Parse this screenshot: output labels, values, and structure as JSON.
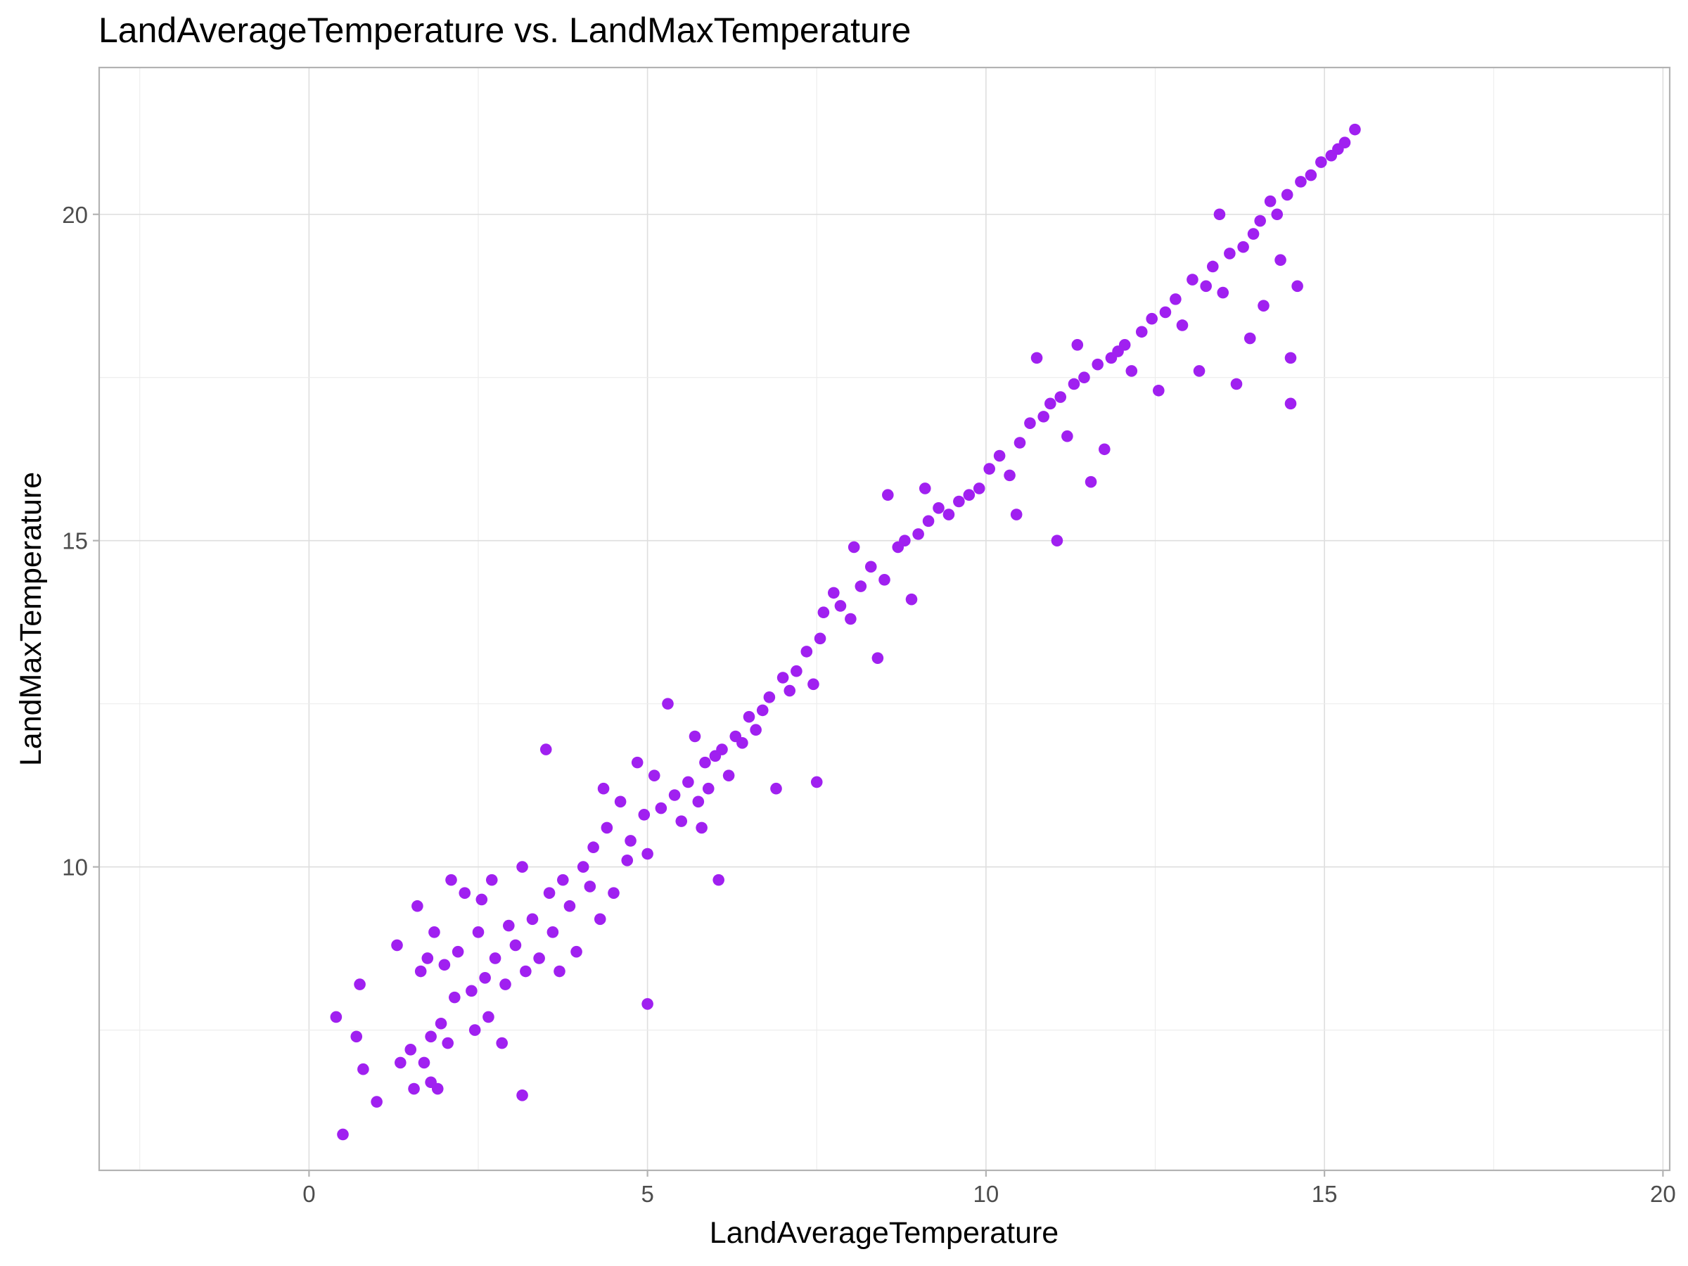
{
  "chart_data": {
    "type": "scatter",
    "title": "LandAverageTemperature vs. LandMaxTemperature",
    "xlabel": "LandAverageTemperature",
    "ylabel": "LandMaxTemperature",
    "xlim": [
      -3.1,
      20.1
    ],
    "ylim": [
      5.35,
      22.25
    ],
    "x_ticks": [
      0,
      5,
      10,
      15,
      20
    ],
    "y_ticks": [
      10,
      15,
      20
    ],
    "grid": true,
    "point_color": "#a020f0",
    "series": [
      {
        "points": [
          [
            0.4,
            7.7
          ],
          [
            0.5,
            5.9
          ],
          [
            0.7,
            7.4
          ],
          [
            0.75,
            8.2
          ],
          [
            0.8,
            6.9
          ],
          [
            1.0,
            6.4
          ],
          [
            1.3,
            8.8
          ],
          [
            1.35,
            7.0
          ],
          [
            1.5,
            7.2
          ],
          [
            1.55,
            6.6
          ],
          [
            1.6,
            9.4
          ],
          [
            1.65,
            8.4
          ],
          [
            1.7,
            7.0
          ],
          [
            1.75,
            8.6
          ],
          [
            1.8,
            6.7
          ],
          [
            1.8,
            7.4
          ],
          [
            1.85,
            9.0
          ],
          [
            1.9,
            6.6
          ],
          [
            1.95,
            7.6
          ],
          [
            2.0,
            8.5
          ],
          [
            2.05,
            7.3
          ],
          [
            2.1,
            9.8
          ],
          [
            2.15,
            8.0
          ],
          [
            2.2,
            8.7
          ],
          [
            2.3,
            9.6
          ],
          [
            2.4,
            8.1
          ],
          [
            2.45,
            7.5
          ],
          [
            2.5,
            9.0
          ],
          [
            2.55,
            9.5
          ],
          [
            2.6,
            8.3
          ],
          [
            2.65,
            7.7
          ],
          [
            2.7,
            9.8
          ],
          [
            2.75,
            8.6
          ],
          [
            2.85,
            7.3
          ],
          [
            2.9,
            8.2
          ],
          [
            2.95,
            9.1
          ],
          [
            3.05,
            8.8
          ],
          [
            3.15,
            10.0
          ],
          [
            3.15,
            6.5
          ],
          [
            3.2,
            8.4
          ],
          [
            3.3,
            9.2
          ],
          [
            3.4,
            8.6
          ],
          [
            3.5,
            11.8
          ],
          [
            3.55,
            9.6
          ],
          [
            3.6,
            9.0
          ],
          [
            3.7,
            8.4
          ],
          [
            3.75,
            9.8
          ],
          [
            3.85,
            9.4
          ],
          [
            3.95,
            8.7
          ],
          [
            4.05,
            10.0
          ],
          [
            4.15,
            9.7
          ],
          [
            4.2,
            10.3
          ],
          [
            4.3,
            9.2
          ],
          [
            4.35,
            11.2
          ],
          [
            4.4,
            10.6
          ],
          [
            4.5,
            9.6
          ],
          [
            4.6,
            11.0
          ],
          [
            4.7,
            10.1
          ],
          [
            4.75,
            10.4
          ],
          [
            4.85,
            11.6
          ],
          [
            4.95,
            10.8
          ],
          [
            5.0,
            10.2
          ],
          [
            5.0,
            7.9
          ],
          [
            5.1,
            11.4
          ],
          [
            5.2,
            10.9
          ],
          [
            5.3,
            12.5
          ],
          [
            5.4,
            11.1
          ],
          [
            5.5,
            10.7
          ],
          [
            5.6,
            11.3
          ],
          [
            5.7,
            12.0
          ],
          [
            5.75,
            11.0
          ],
          [
            5.8,
            10.6
          ],
          [
            5.85,
            11.6
          ],
          [
            5.9,
            11.2
          ],
          [
            6.0,
            11.7
          ],
          [
            6.05,
            9.8
          ],
          [
            6.1,
            11.8
          ],
          [
            6.2,
            11.4
          ],
          [
            6.3,
            12.0
          ],
          [
            6.4,
            11.9
          ],
          [
            6.5,
            12.3
          ],
          [
            6.6,
            12.1
          ],
          [
            6.7,
            12.4
          ],
          [
            6.8,
            12.6
          ],
          [
            6.9,
            11.2
          ],
          [
            7.0,
            12.9
          ],
          [
            7.1,
            12.7
          ],
          [
            7.2,
            13.0
          ],
          [
            7.35,
            13.3
          ],
          [
            7.45,
            12.8
          ],
          [
            7.5,
            11.3
          ],
          [
            7.55,
            13.5
          ],
          [
            7.6,
            13.9
          ],
          [
            7.75,
            14.2
          ],
          [
            7.85,
            14.0
          ],
          [
            8.0,
            13.8
          ],
          [
            8.05,
            14.9
          ],
          [
            8.15,
            14.3
          ],
          [
            8.3,
            14.6
          ],
          [
            8.4,
            13.2
          ],
          [
            8.5,
            14.4
          ],
          [
            8.55,
            15.7
          ],
          [
            8.7,
            14.9
          ],
          [
            8.8,
            15.0
          ],
          [
            8.9,
            14.1
          ],
          [
            9.0,
            15.1
          ],
          [
            9.1,
            15.8
          ],
          [
            9.15,
            15.3
          ],
          [
            9.3,
            15.5
          ],
          [
            9.45,
            15.4
          ],
          [
            9.6,
            15.6
          ],
          [
            9.75,
            15.7
          ],
          [
            9.9,
            15.8
          ],
          [
            10.05,
            16.1
          ],
          [
            10.2,
            16.3
          ],
          [
            10.35,
            16.0
          ],
          [
            10.45,
            15.4
          ],
          [
            10.5,
            16.5
          ],
          [
            10.65,
            16.8
          ],
          [
            10.75,
            17.8
          ],
          [
            10.85,
            16.9
          ],
          [
            10.95,
            17.1
          ],
          [
            11.05,
            15.0
          ],
          [
            11.1,
            17.2
          ],
          [
            11.2,
            16.6
          ],
          [
            11.3,
            17.4
          ],
          [
            11.35,
            18.0
          ],
          [
            11.45,
            17.5
          ],
          [
            11.55,
            15.9
          ],
          [
            11.65,
            17.7
          ],
          [
            11.75,
            16.4
          ],
          [
            11.85,
            17.8
          ],
          [
            11.95,
            17.9
          ],
          [
            12.05,
            18.0
          ],
          [
            12.15,
            17.6
          ],
          [
            12.3,
            18.2
          ],
          [
            12.45,
            18.4
          ],
          [
            12.55,
            17.3
          ],
          [
            12.65,
            18.5
          ],
          [
            12.8,
            18.7
          ],
          [
            12.9,
            18.3
          ],
          [
            13.05,
            19.0
          ],
          [
            13.15,
            17.6
          ],
          [
            13.25,
            18.9
          ],
          [
            13.35,
            19.2
          ],
          [
            13.45,
            20.0
          ],
          [
            13.5,
            18.8
          ],
          [
            13.6,
            19.4
          ],
          [
            13.7,
            17.4
          ],
          [
            13.8,
            19.5
          ],
          [
            13.9,
            18.1
          ],
          [
            13.95,
            19.7
          ],
          [
            14.05,
            19.9
          ],
          [
            14.1,
            18.6
          ],
          [
            14.2,
            20.2
          ],
          [
            14.3,
            20.0
          ],
          [
            14.35,
            19.3
          ],
          [
            14.45,
            20.3
          ],
          [
            14.5,
            17.1
          ],
          [
            14.5,
            17.8
          ],
          [
            14.6,
            18.9
          ],
          [
            14.65,
            20.5
          ],
          [
            14.8,
            20.6
          ],
          [
            14.95,
            20.8
          ],
          [
            15.1,
            20.9
          ],
          [
            15.2,
            21.0
          ],
          [
            15.3,
            21.1
          ],
          [
            15.45,
            21.3
          ]
        ]
      }
    ]
  }
}
